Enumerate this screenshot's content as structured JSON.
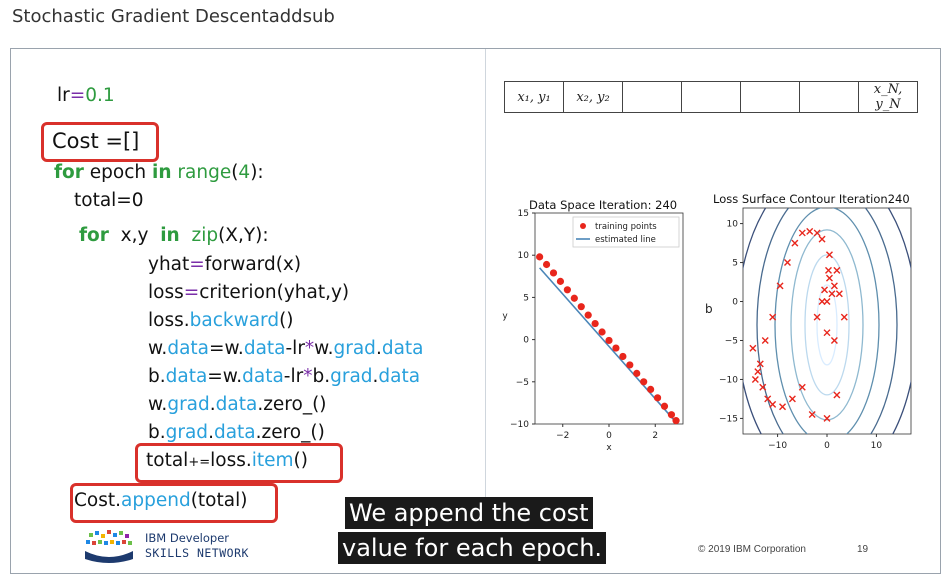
{
  "page_title": "Stochastic Gradient Descentaddsub",
  "code": {
    "lr_name": "lr",
    "lr_eq": "=",
    "lr_val": "0.1",
    "cost_line": "Cost =[]",
    "for_kw": "for",
    "epoch": " epoch ",
    "in_kw": "in",
    "range_fn": "range",
    "range_open": "(",
    "range_num": "4",
    "range_close": "):",
    "total_init": "total=0",
    "for2_kw": "for",
    "xy": "x,y",
    "in2_kw": "in",
    "zip_fn": "zip",
    "zip_args": "(X,Y):",
    "yhat_a": "yhat",
    "yhat_eq": "=",
    "yhat_b": "forward(x)",
    "loss_a": "loss",
    "loss_eq": "=",
    "loss_b": "criterion(yhat,y)",
    "lb_a": "loss.",
    "lb_b": "backward",
    "lb_c": "()",
    "w_a": "w.",
    "w_b": "data",
    "w_c": "=w.",
    "w_d": "data",
    "w_e": "-lr",
    "w_f": "*",
    "w_g": "w.",
    "w_h": "grad",
    "w_i": ".",
    "w_j": "data",
    "b_a": "b.",
    "b_b": "data",
    "b_c": "=w.",
    "b_d": "data",
    "b_e": "-lr",
    "b_f": "*",
    "b_g": "b.",
    "b_h": "grad",
    "b_i": ".",
    "b_j": "data",
    "wz_a": "w.",
    "wz_b": "grad",
    "wz_c": ".",
    "wz_d": "data",
    "wz_e": ".",
    "wz_f": "zero_",
    "wz_g": "()",
    "bz_a": "b.",
    "bz_b": "grad",
    "bz_c": ".",
    "bz_d": "data",
    "bz_e": ".",
    "bz_f": "zero_",
    "bz_g": "()",
    "tot_a": "total",
    "tot_b": "+=",
    "tot_c": "loss.",
    "tot_d": "item",
    "tot_e": "()",
    "ca_a": "Cost.",
    "ca_b": "append",
    "ca_c": "(total)"
  },
  "table": {
    "cells": [
      "x₁, y₁",
      "x₂, y₂",
      "",
      "",
      "",
      "",
      "x_N, y_N"
    ]
  },
  "charts": {
    "colors": {
      "points": "#e8261c",
      "line": "#4a86b8",
      "contour": "#3b1f5e"
    },
    "left_title": "Data Space Iteration: 240",
    "right_title": "Loss Surface Contour Iteration240"
  },
  "chart_data": [
    {
      "type": "scatter",
      "title": "Data Space Iteration: 240",
      "xlabel": "x",
      "ylabel": "y",
      "xlim": [
        -3.2,
        3.2
      ],
      "ylim": [
        -10,
        15
      ],
      "xticks": [
        "−2",
        "0",
        "2"
      ],
      "yticks": [
        "15",
        "10",
        "5",
        "0",
        "−5",
        "−10"
      ],
      "legend": [
        "training points",
        "estimated line"
      ],
      "legend_position": "top-right",
      "series": [
        {
          "name": "training points",
          "x": [
            -3.0,
            -2.7,
            -2.4,
            -2.1,
            -1.8,
            -1.5,
            -1.2,
            -0.9,
            -0.6,
            -0.3,
            0.0,
            0.3,
            0.6,
            0.9,
            1.2,
            1.5,
            1.8,
            2.1,
            2.4,
            2.7,
            2.9
          ],
          "y": [
            9.8,
            8.9,
            7.9,
            6.9,
            5.9,
            4.9,
            3.9,
            2.9,
            1.9,
            0.9,
            -0.1,
            -1.0,
            -2.0,
            -3.0,
            -4.0,
            -5.0,
            -5.9,
            -6.9,
            -7.9,
            -8.9,
            -9.6
          ]
        },
        {
          "name": "estimated line",
          "x": [
            -3.0,
            2.9
          ],
          "y": [
            8.5,
            -9.8
          ]
        }
      ]
    },
    {
      "type": "scatter",
      "title": "Loss Surface Contour Iteration240",
      "xlabel": "w",
      "ylabel": "b",
      "xlim": [
        -17,
        17
      ],
      "ylim": [
        -17,
        12
      ],
      "xticks": [
        "−10",
        "0",
        "10"
      ],
      "yticks": [
        "10",
        "5",
        "0",
        "−5",
        "−10",
        "−15"
      ],
      "series": [
        {
          "name": "",
          "x": [
            -14.5,
            -13.5,
            -12.5,
            -11,
            -9.5,
            -8,
            -6.5,
            -5,
            -3.5,
            -2,
            -1,
            0.5,
            2,
            2.5,
            3.5,
            -15,
            -14,
            -13,
            -12,
            -11,
            -9,
            -7,
            -5,
            -3,
            0,
            2,
            1.5,
            0,
            -2,
            -1,
            0.5,
            1.5,
            1,
            0,
            -0.5,
            0.3
          ],
          "y": [
            -10,
            -8,
            -5,
            -2,
            2,
            5,
            7.5,
            8.8,
            9,
            8.8,
            8,
            6,
            4,
            1,
            -2,
            -6,
            -9,
            -11,
            -12.5,
            -13.2,
            -13.5,
            -12.5,
            -11,
            -14.5,
            -15,
            -12,
            -5,
            -4,
            -2,
            0,
            3,
            2,
            1,
            0,
            1.5,
            4
          ]
        }
      ]
    }
  ],
  "footer": {
    "copyright": "© 2019 IBM Corporation",
    "page": "19",
    "logo_line1": "IBM Developer",
    "logo_line2": "SKILLS NETWORK"
  },
  "caption": {
    "line1": "We append the cost",
    "line2": "value for each epoch."
  }
}
